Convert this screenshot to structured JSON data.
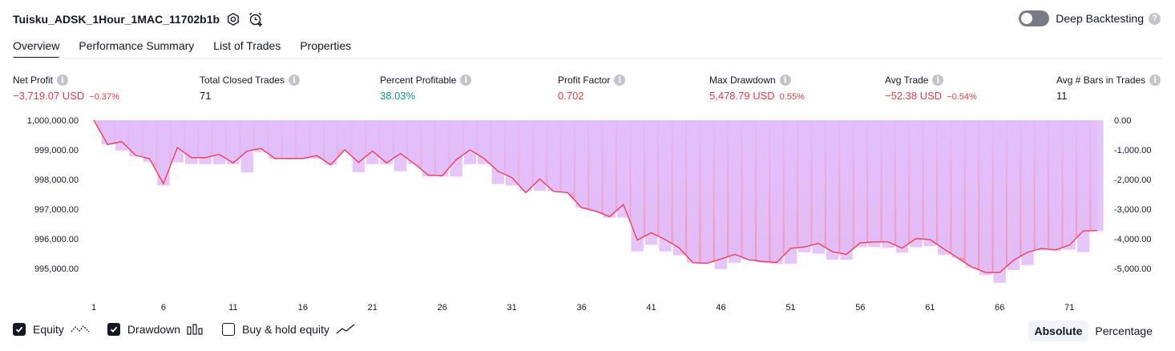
{
  "header": {
    "strategy_title": "Tuisku_ADSK_1Hour_1MAC_11702b1b",
    "settings_icon": "gear-icon",
    "alert_icon": "alarm-clock-plus-icon",
    "deep_backtesting_label": "Deep Backtesting",
    "deep_backtesting_enabled": false
  },
  "tabs": [
    {
      "label": "Overview",
      "active": true
    },
    {
      "label": "Performance Summary",
      "active": false
    },
    {
      "label": "List of Trades",
      "active": false
    },
    {
      "label": "Properties",
      "active": false
    }
  ],
  "metrics": [
    {
      "label": "Net Profit",
      "value": "−3,719.07 USD",
      "sub": "−0.37%",
      "tone": "neg"
    },
    {
      "label": "Total Closed Trades",
      "value": "71",
      "sub": "",
      "tone": "neutral"
    },
    {
      "label": "Percent Profitable",
      "value": "38.03%",
      "sub": "",
      "tone": "pos"
    },
    {
      "label": "Profit Factor",
      "value": "0.702",
      "sub": "",
      "tone": "neg"
    },
    {
      "label": "Max Drawdown",
      "value": "5,478.79 USD",
      "sub": "0.55%",
      "tone": "neg"
    },
    {
      "label": "Avg Trade",
      "value": "−52.38 USD",
      "sub": "−0.54%",
      "tone": "neg"
    },
    {
      "label": "Avg # Bars in Trades",
      "value": "11",
      "sub": "",
      "tone": "neutral"
    }
  ],
  "colors": {
    "equity_line": "#f23645",
    "equity_fill_top": "#e0b8f5",
    "equity_fill_bottom": "#f28cb0",
    "drawdown_bar": "#e2c0fb",
    "negative": "#f23645",
    "positive": "#089981"
  },
  "chart_data": {
    "type": "line",
    "series": [
      {
        "key": "equity",
        "axis": "left",
        "values": [
          1000000,
          999180,
          999280,
          998820,
          998700,
          997860,
          999080,
          998740,
          998740,
          998850,
          998560,
          998960,
          999050,
          998710,
          998710,
          998710,
          998810,
          998500,
          999000,
          998580,
          998960,
          998560,
          998880,
          998540,
          998150,
          998130,
          998670,
          999000,
          998710,
          998280,
          998070,
          997560,
          998020,
          997600,
          997560,
          997050,
          996940,
          996750,
          997160,
          995960,
          996210,
          995980,
          995700,
          995200,
          995180,
          995320,
          995480,
          995300,
          995240,
          995210,
          995680,
          995730,
          995850,
          995570,
          995480,
          995870,
          995900,
          995900,
          995690,
          996010,
          995980,
          995660,
          995360,
          995050,
          994870,
          994870,
          995280,
          995550,
          995680,
          995630,
          995790,
          996270,
          996280
        ]
      },
      {
        "key": "drawdown",
        "axis": "right",
        "values": [
          0,
          -820,
          -1020,
          -1220,
          -1400,
          -2200,
          -1420,
          -1480,
          -1480,
          -1480,
          -1480,
          -1760,
          -1070,
          -1300,
          -1300,
          -1300,
          -1300,
          -1500,
          -1000,
          -1750,
          -1480,
          -1480,
          -1720,
          -1480,
          -1900,
          -1890,
          -1900,
          -1480,
          -1480,
          -2150,
          -2200,
          -2380,
          -2380,
          -2380,
          -2450,
          -2940,
          -3070,
          -3280,
          -3280,
          -4420,
          -4200,
          -4420,
          -4550,
          -4800,
          -4800,
          -5020,
          -4800,
          -4700,
          -4800,
          -4840,
          -4840,
          -4450,
          -4500,
          -4700,
          -4700,
          -4280,
          -4270,
          -4300,
          -4460,
          -4280,
          -4240,
          -4530,
          -4630,
          -4960,
          -5220,
          -5480,
          -5050,
          -4880,
          -4380,
          -4400,
          -4360,
          -4440,
          -3740
        ]
      }
    ],
    "x_ticks": [
      1,
      6,
      11,
      16,
      21,
      26,
      31,
      36,
      41,
      46,
      51,
      56,
      61,
      66,
      71
    ],
    "left_axis_labels": [
      "1,000,000.00",
      "999,000.00",
      "998,000.00",
      "997,000.00",
      "996,000.00",
      "995,000.00"
    ],
    "left_axis_values": [
      1000000,
      999000,
      998000,
      997000,
      996000,
      995000
    ],
    "right_axis_labels": [
      "0.00",
      "-1,000.00",
      "-2,000.00",
      "-3,000.00",
      "-4,000.00",
      "-5,000.00"
    ],
    "right_axis_values": [
      0,
      -1000,
      -2000,
      -3000,
      -4000,
      -5000
    ],
    "left_ylim": [
      994600,
      1000000
    ],
    "right_ylim": [
      -5400,
      0
    ]
  },
  "legend": {
    "items": [
      {
        "label": "Equity",
        "checked": true,
        "icon": "equity-line-icon"
      },
      {
        "label": "Drawdown",
        "checked": true,
        "icon": "drawdown-bars-icon"
      },
      {
        "label": "Buy & hold equity",
        "checked": false,
        "icon": "buy-hold-line-icon"
      }
    ],
    "modes": [
      {
        "label": "Absolute",
        "active": true
      },
      {
        "label": "Percentage",
        "active": false
      }
    ]
  }
}
